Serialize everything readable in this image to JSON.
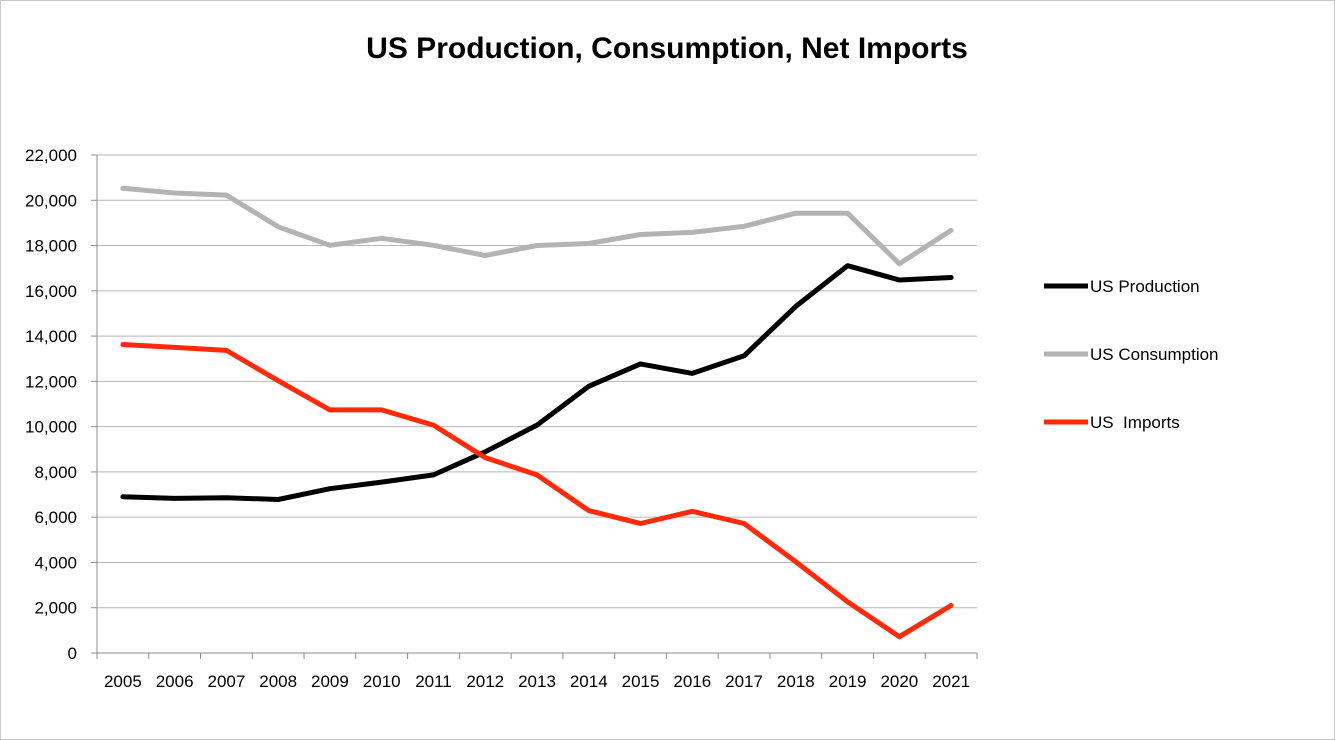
{
  "chart_data": {
    "type": "line",
    "title": "US Production, Consumption, Net Imports",
    "xlabel": "",
    "ylabel": "",
    "categories": [
      "2005",
      "2006",
      "2007",
      "2008",
      "2009",
      "2010",
      "2011",
      "2012",
      "2013",
      "2014",
      "2015",
      "2016",
      "2017",
      "2018",
      "2019",
      "2020",
      "2021"
    ],
    "ylim": [
      0,
      22000
    ],
    "yticks": [
      0,
      2000,
      4000,
      6000,
      8000,
      10000,
      12000,
      14000,
      16000,
      18000,
      20000,
      22000
    ],
    "ytick_labels": [
      "0",
      "2,000",
      "4,000",
      "6,000",
      "8,000",
      "10,000",
      "12,000",
      "14,000",
      "16,000",
      "18,000",
      "20,000",
      "22,000"
    ],
    "grid": true,
    "legend_position": "right",
    "series": [
      {
        "name": "US Production",
        "color": "#000000",
        "values": [
          6900,
          6830,
          6860,
          6780,
          7260,
          7550,
          7870,
          8890,
          10070,
          11780,
          12770,
          12350,
          13130,
          15310,
          17110,
          16480,
          16590
        ]
      },
      {
        "name": "US Consumption",
        "color": "#b3b3b3",
        "values": [
          20530,
          20320,
          20230,
          18830,
          18010,
          18320,
          18010,
          17560,
          18000,
          18090,
          18490,
          18580,
          18850,
          19430,
          19430,
          17200,
          18670
        ]
      },
      {
        "name": "US  Imports",
        "color": "#ff2a0a",
        "values": [
          13630,
          13500,
          13370,
          12030,
          10740,
          10740,
          10070,
          8630,
          7870,
          6290,
          5720,
          6260,
          5720,
          4030,
          2260,
          720,
          2100
        ]
      }
    ]
  }
}
